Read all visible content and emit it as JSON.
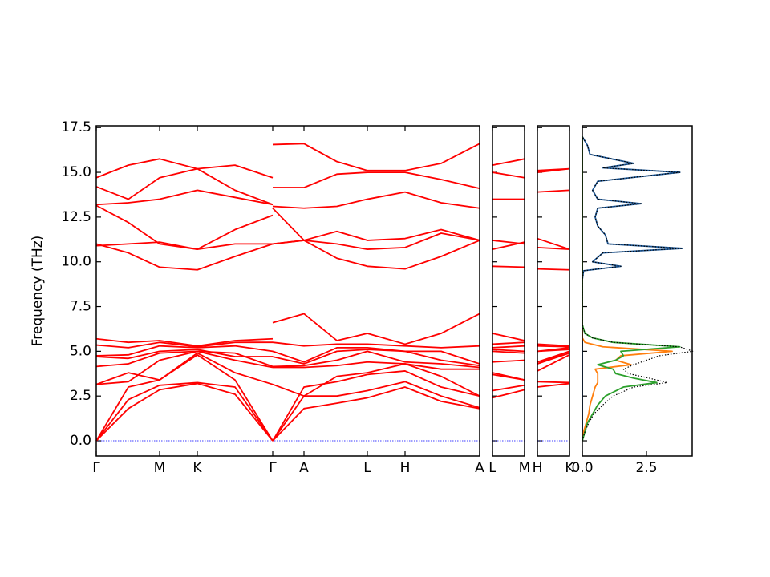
{
  "chart_data": [
    {
      "type": "line",
      "ylabel": "Frequency (THz)",
      "color": "#ff0000",
      "x": [
        0,
        0.4,
        0.79,
        1.26,
        1.73,
        2.2,
        2.2,
        2.2,
        2.59,
        3.0,
        3.38,
        3.85,
        4.3,
        4.78
      ],
      "xlim": [
        0,
        4.78
      ],
      "xticks": [
        {
          "value": 0,
          "label": "Γ"
        },
        {
          "value": 0.79,
          "label": "M"
        },
        {
          "value": 1.26,
          "label": "K"
        },
        {
          "value": 2.2,
          "label": "Γ"
        },
        {
          "value": 2.59,
          "label": "A"
        },
        {
          "value": 3.38,
          "label": "L"
        },
        {
          "value": 3.85,
          "label": "H"
        },
        {
          "value": 4.78,
          "label": "A"
        }
      ],
      "ylim": [
        -0.85,
        17.6
      ],
      "yticks": [
        {
          "value": 0,
          "label": "0.0"
        },
        {
          "value": 2.5,
          "label": "2.5"
        },
        {
          "value": 5,
          "label": "5.0"
        },
        {
          "value": 7.5,
          "label": "7.5"
        },
        {
          "value": 10,
          "label": "10.0"
        },
        {
          "value": 12.5,
          "label": "12.5"
        },
        {
          "value": 15,
          "label": "15.0"
        },
        {
          "value": 17.5,
          "label": "17.5"
        }
      ],
      "series": [
        {
          "values": [
            0,
            1.8,
            2.85,
            3.2,
            2.6,
            0,
            null,
            0,
            1.8,
            2.1,
            2.4,
            3.0,
            2.2,
            1.8
          ]
        },
        {
          "values": [
            0,
            2.3,
            3.1,
            3.25,
            3.0,
            0,
            null,
            0,
            2.5,
            2.5,
            2.8,
            3.3,
            2.5,
            1.85
          ]
        },
        {
          "values": [
            0,
            3.0,
            3.4,
            4.8,
            3.4,
            0,
            null,
            0,
            3.0,
            3.3,
            3.7,
            3.9,
            3.0,
            2.5
          ]
        },
        {
          "values": [
            3.15,
            3.8,
            3.4,
            4.9,
            3.8,
            3.15,
            null,
            3.15,
            2.5,
            3.6,
            3.8,
            4.3,
            3.6,
            2.5
          ]
        },
        {
          "values": [
            3.15,
            3.3,
            4.5,
            5.0,
            4.5,
            4.1,
            null,
            4.1,
            4.1,
            4.2,
            4.4,
            4.3,
            4.0,
            4.0
          ]
        },
        {
          "values": [
            4.15,
            4.3,
            4.9,
            5.0,
            4.9,
            4.15,
            null,
            4.15,
            4.2,
            4.5,
            5.0,
            4.4,
            4.3,
            4.1
          ]
        },
        {
          "values": [
            4.7,
            4.6,
            5.0,
            5.1,
            4.7,
            4.7,
            null,
            4.7,
            4.3,
            5.0,
            5.1,
            5.0,
            4.5,
            4.2
          ]
        },
        {
          "values": [
            4.75,
            4.8,
            5.3,
            5.2,
            5.3,
            5.0,
            null,
            5.0,
            4.4,
            5.2,
            5.2,
            5.0,
            5.0,
            4.3
          ]
        },
        {
          "values": [
            5.35,
            5.2,
            5.5,
            5.25,
            5.5,
            5.5,
            null,
            5.5,
            5.3,
            5.4,
            5.4,
            5.3,
            5.2,
            5.3
          ]
        },
        {
          "values": [
            5.7,
            5.5,
            5.6,
            5.3,
            5.6,
            5.7,
            null,
            6.6,
            7.1,
            5.6,
            6.0,
            5.4,
            6.0,
            7.1
          ]
        },
        {
          "values": [
            11.0,
            10.5,
            9.7,
            9.55,
            10.3,
            11.0,
            null,
            11.0,
            11.2,
            10.2,
            9.75,
            9.6,
            10.3,
            11.2
          ]
        },
        {
          "values": [
            10.9,
            11.0,
            11.1,
            10.7,
            11.0,
            11.0,
            null,
            11.0,
            11.2,
            11.0,
            10.7,
            10.8,
            11.6,
            11.2
          ]
        },
        {
          "values": [
            13.15,
            12.2,
            11.0,
            10.7,
            11.8,
            12.6,
            null,
            13.0,
            11.2,
            11.7,
            11.2,
            11.3,
            11.8,
            11.2
          ]
        },
        {
          "values": [
            13.2,
            13.3,
            13.5,
            14.0,
            13.6,
            13.2,
            null,
            13.1,
            13.0,
            13.1,
            13.5,
            13.9,
            13.3,
            13.0
          ]
        },
        {
          "values": [
            14.2,
            13.5,
            14.7,
            15.2,
            14.0,
            13.2,
            null,
            14.15,
            14.15,
            14.9,
            15.0,
            15.0,
            14.6,
            14.1
          ]
        },
        {
          "values": [
            14.7,
            15.4,
            15.75,
            15.2,
            15.4,
            14.7,
            null,
            16.55,
            16.6,
            15.6,
            15.1,
            15.1,
            15.5,
            16.6
          ]
        }
      ]
    },
    {
      "type": "line",
      "color": "#ff0000",
      "x": [
        0,
        1
      ],
      "xlim": [
        0,
        1
      ],
      "ylim": [
        -0.85,
        17.6
      ],
      "xticks": [
        {
          "value": 0,
          "label": "L"
        },
        {
          "value": 1,
          "label": "M"
        }
      ],
      "series": [
        {
          "values": [
            2.4,
            2.85
          ]
        },
        {
          "values": [
            2.8,
            3.1
          ]
        },
        {
          "values": [
            3.7,
            3.4
          ]
        },
        {
          "values": [
            3.8,
            3.4
          ]
        },
        {
          "values": [
            4.4,
            4.5
          ]
        },
        {
          "values": [
            5.0,
            4.9
          ]
        },
        {
          "values": [
            5.1,
            5.0
          ]
        },
        {
          "values": [
            5.2,
            5.3
          ]
        },
        {
          "values": [
            5.4,
            5.5
          ]
        },
        {
          "values": [
            6.0,
            5.6
          ]
        },
        {
          "values": [
            9.75,
            9.7
          ]
        },
        {
          "values": [
            10.7,
            11.1
          ]
        },
        {
          "values": [
            11.2,
            11.0
          ]
        },
        {
          "values": [
            13.5,
            13.5
          ]
        },
        {
          "values": [
            15.0,
            14.7
          ]
        },
        {
          "values": [
            15.4,
            15.75
          ]
        }
      ]
    },
    {
      "type": "line",
      "color": "#ff0000",
      "x": [
        0,
        1
      ],
      "xlim": [
        0,
        1
      ],
      "ylim": [
        -0.85,
        17.6
      ],
      "xticks": [
        {
          "value": 0,
          "label": "H"
        },
        {
          "value": 1,
          "label": "K"
        }
      ],
      "series": [
        {
          "values": [
            3.0,
            3.2
          ]
        },
        {
          "values": [
            3.3,
            3.25
          ]
        },
        {
          "values": [
            3.9,
            4.8
          ]
        },
        {
          "values": [
            4.3,
            4.9
          ]
        },
        {
          "values": [
            4.3,
            5.0
          ]
        },
        {
          "values": [
            4.4,
            5.0
          ]
        },
        {
          "values": [
            5.0,
            5.1
          ]
        },
        {
          "values": [
            5.0,
            5.2
          ]
        },
        {
          "values": [
            5.3,
            5.25
          ]
        },
        {
          "values": [
            5.4,
            5.3
          ]
        },
        {
          "values": [
            9.6,
            9.55
          ]
        },
        {
          "values": [
            10.8,
            10.7
          ]
        },
        {
          "values": [
            11.3,
            10.7
          ]
        },
        {
          "values": [
            13.9,
            14.0
          ]
        },
        {
          "values": [
            15.0,
            15.2
          ]
        },
        {
          "values": [
            15.1,
            15.2
          ]
        }
      ]
    },
    {
      "type": "line",
      "orientation": "horizontal",
      "y": [
        0,
        0.5,
        1,
        1.5,
        2,
        2.5,
        3,
        3.25,
        3.5,
        3.75,
        4,
        4.25,
        4.5,
        4.75,
        5,
        5.25,
        5.5,
        5.75,
        6,
        6.5,
        7,
        7.5,
        8,
        8.5,
        9,
        9.5,
        9.75,
        10,
        10.25,
        10.5,
        10.75,
        11,
        11.5,
        12,
        12.5,
        13,
        13.25,
        13.5,
        13.75,
        14,
        14.5,
        15,
        15.25,
        15.5,
        16,
        16.5,
        17
      ],
      "xlim": [
        0,
        4.28
      ],
      "ylim": [
        -0.85,
        17.6
      ],
      "xticks": [
        {
          "value": 0,
          "label": "0.0"
        },
        {
          "value": 2.5,
          "label": "2.5"
        }
      ],
      "series": [
        {
          "color": "#1f5a9a",
          "values": [
            0,
            0,
            0,
            0,
            0,
            0,
            0,
            0,
            0,
            0,
            0,
            0,
            0,
            0,
            0,
            0,
            0,
            0,
            0,
            0,
            0,
            0,
            0,
            0,
            0,
            0.05,
            1.5,
            0.4,
            0.6,
            0.8,
            3.9,
            1.0,
            0.9,
            0.6,
            0.5,
            0.6,
            2.3,
            0.6,
            0.5,
            0.4,
            0.6,
            3.8,
            0.8,
            2.0,
            0.3,
            0.2,
            0
          ]
        },
        {
          "color": "#ff7f0e",
          "values": [
            0,
            0.05,
            0.15,
            0.25,
            0.3,
            0.4,
            0.5,
            0.6,
            0.6,
            0.6,
            0.5,
            1.9,
            1.3,
            1.5,
            3.5,
            0.8,
            0.1,
            0,
            0,
            0,
            0,
            0,
            0,
            0,
            0,
            0,
            0,
            0,
            0,
            0,
            0,
            0,
            0,
            0,
            0,
            0,
            0,
            0,
            0,
            0,
            0,
            0,
            0,
            0,
            0,
            0,
            0
          ]
        },
        {
          "color": "#2ca02c",
          "values": [
            0,
            0.1,
            0.2,
            0.4,
            0.6,
            0.9,
            1.6,
            2.9,
            2.0,
            1.3,
            1.2,
            0.6,
            1.3,
            1.6,
            1.5,
            3.8,
            1.2,
            0.4,
            0.1,
            0,
            0,
            0,
            0,
            0,
            0,
            0,
            0,
            0,
            0,
            0,
            0,
            0,
            0,
            0,
            0,
            0,
            0,
            0,
            0,
            0,
            0,
            0,
            0,
            0,
            0,
            0,
            0
          ]
        },
        {
          "color": "#000000",
          "dash": "dotted",
          "values": [
            0,
            0.1,
            0.25,
            0.45,
            0.8,
            1.2,
            2.0,
            3.3,
            2.6,
            1.8,
            1.6,
            2.0,
            2.5,
            3.0,
            4.3,
            3.8,
            1.2,
            0.4,
            0.1,
            0,
            0,
            0,
            0,
            0,
            0,
            0.05,
            1.5,
            0.4,
            0.6,
            0.8,
            3.9,
            1.0,
            0.9,
            0.6,
            0.5,
            0.6,
            2.3,
            0.6,
            0.5,
            0.4,
            0.6,
            3.8,
            0.8,
            2.0,
            0.3,
            0.2,
            0
          ]
        }
      ]
    }
  ]
}
